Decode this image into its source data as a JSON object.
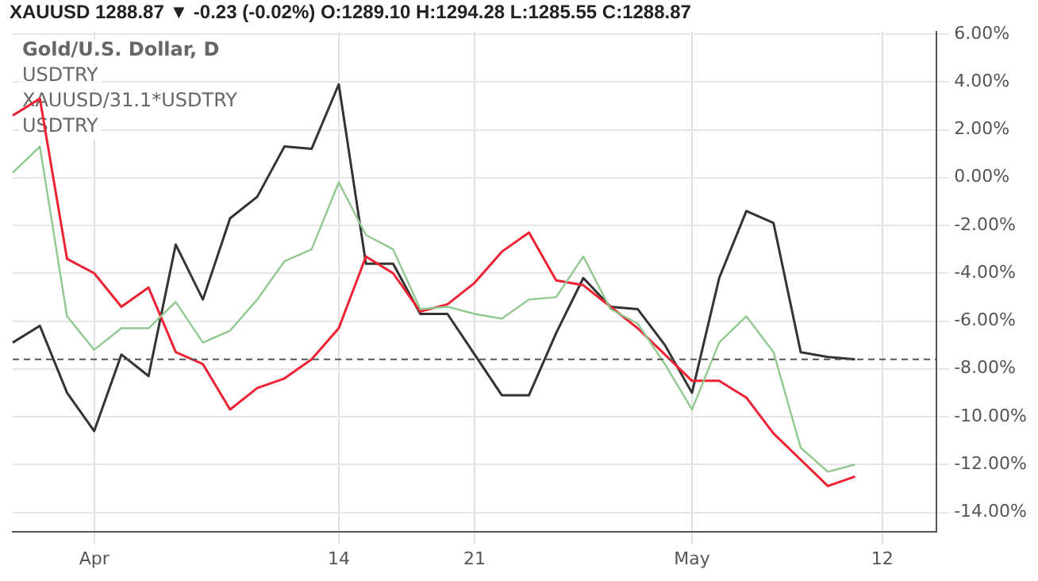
{
  "chart_data": {
    "type": "line",
    "annotations": [
      "XAUUSD 1288.87 ▼ -0.23 (-0.02%) O:1289.10 H:1294.28 L:1285.55 C:1288.87",
      "Gold/U.S. Dollar, D",
      "USDTRY",
      "XAUUSD/31.1*USDTRY",
      "USDTRY"
    ],
    "categories": [
      null,
      null,
      null,
      "Apr",
      null,
      null,
      null,
      null,
      null,
      null,
      null,
      null,
      "14",
      null,
      null,
      null,
      null,
      "21",
      null,
      null,
      null,
      null,
      null,
      null,
      null,
      "May",
      null,
      null,
      null,
      null,
      null,
      null,
      "12",
      null,
      null
    ],
    "series": [
      {
        "color": "#90c890",
        "values": [
          0.2,
          1.3,
          -5.8,
          -7.2,
          -6.3,
          -6.3,
          -5.2,
          -6.9,
          -6.4,
          -5.1,
          -3.5,
          -3.0,
          -0.2,
          -2.4,
          -3.0,
          -5.5,
          -5.4,
          -5.7,
          -5.9,
          -5.1,
          -5.0,
          -3.3,
          -5.5,
          -6.1,
          -7.8,
          -9.7,
          -6.9,
          -5.8,
          -7.3,
          -11.3,
          -12.3,
          -12.0,
          null,
          null,
          null
        ]
      },
      {
        "color": "#ee2233",
        "values": [
          2.6,
          3.3,
          -3.4,
          -4.0,
          -5.4,
          -4.6,
          -7.3,
          -7.8,
          -9.7,
          -8.8,
          -8.4,
          -7.6,
          -6.3,
          -3.3,
          -4.0,
          -5.6,
          -5.3,
          -4.4,
          -3.1,
          -2.3,
          -4.3,
          -4.5,
          -5.4,
          -6.3,
          -7.4,
          -8.5,
          -8.5,
          -9.2,
          -10.7,
          -11.8,
          -12.9,
          -12.5,
          null,
          null,
          null
        ]
      },
      {
        "color": "#333333",
        "values": [
          -6.9,
          -6.2,
          -9.0,
          -10.6,
          -7.4,
          -8.3,
          -2.8,
          -5.1,
          -1.7,
          -0.8,
          1.3,
          1.2,
          3.9,
          -3.6,
          -3.6,
          -5.7,
          -5.7,
          -7.4,
          -9.1,
          -9.1,
          -6.5,
          -4.2,
          -5.4,
          -5.5,
          -7.0,
          -9.0,
          -4.2,
          -1.4,
          -1.9,
          -7.3,
          -7.5,
          -7.6,
          null,
          null,
          null
        ]
      }
    ],
    "ylim": [
      -14.8,
      6.1
    ],
    "yticks": [
      {
        "value": -14,
        "label": "-14.00%"
      },
      {
        "value": -12,
        "label": "-12.00%"
      },
      {
        "value": -10,
        "label": "-10.00%"
      },
      {
        "value": -8,
        "label": "-8.00%"
      },
      {
        "value": -6,
        "label": "-6.00%"
      },
      {
        "value": -4,
        "label": "-4.00%"
      },
      {
        "value": -2,
        "label": "-2.00%"
      },
      {
        "value": 0,
        "label": "0.00%"
      },
      {
        "value": 2,
        "label": "2.00%"
      },
      {
        "value": 4,
        "label": "4.00%"
      },
      {
        "value": 6,
        "label": "6.00%"
      }
    ],
    "ref_lines": [
      {
        "axis": "y",
        "value": -7.6,
        "color": "#555555",
        "line_style": "dashed"
      }
    ],
    "grid": true,
    "legend": false,
    "marker": "none",
    "line_style": "solid"
  }
}
